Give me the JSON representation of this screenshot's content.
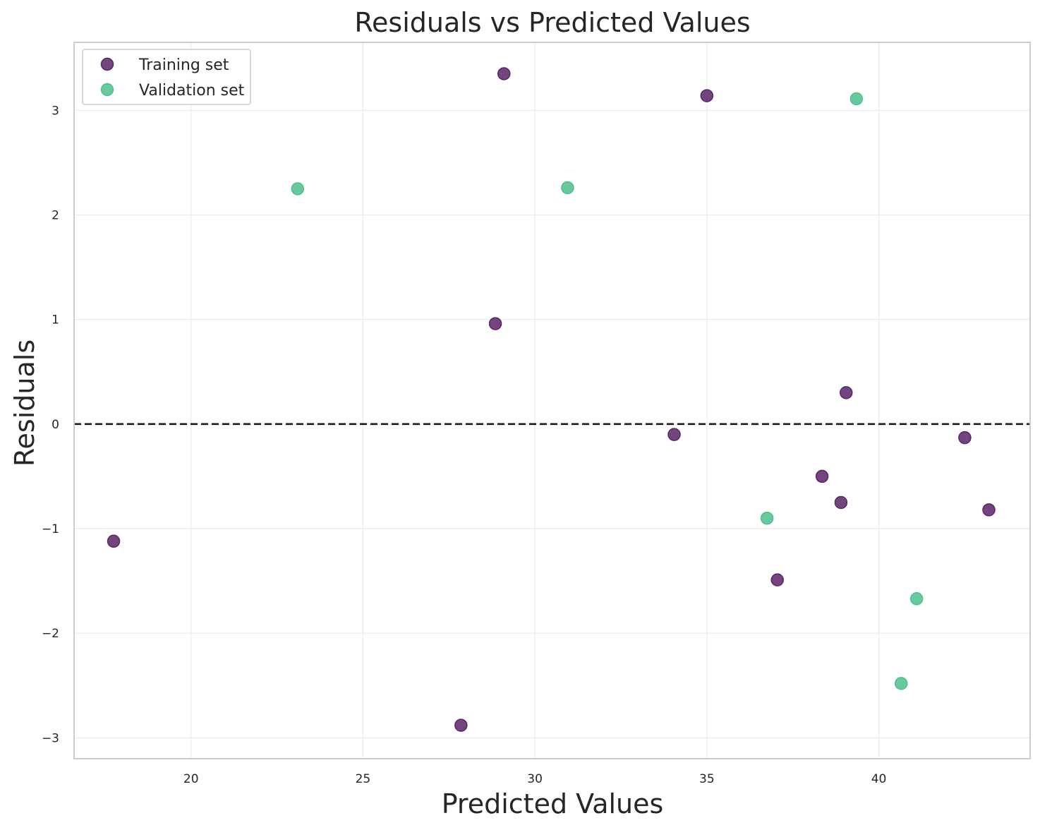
{
  "chart_data": {
    "type": "scatter",
    "title": "Residuals vs Predicted Values",
    "xlabel": "Predicted Values",
    "ylabel": "Residuals",
    "xlim": [
      16.6,
      44.4
    ],
    "ylim": [
      -3.2,
      3.65
    ],
    "xticks": [
      20,
      25,
      30,
      35,
      40
    ],
    "yticks": [
      -3,
      -2,
      -1,
      0,
      1,
      2,
      3
    ],
    "ytick_labels": [
      "−3",
      "−2",
      "−1",
      "0",
      "1",
      "2",
      "3"
    ],
    "grid": true,
    "legend_placement": "top-left",
    "reference_line": {
      "y": 0,
      "style": "dashed",
      "color": "#1a1a1a"
    },
    "series": [
      {
        "name": "Training set",
        "color": "#5b2567",
        "points": [
          {
            "x": 17.75,
            "y": -1.12
          },
          {
            "x": 27.85,
            "y": -2.88
          },
          {
            "x": 28.85,
            "y": 0.96
          },
          {
            "x": 29.1,
            "y": 3.35
          },
          {
            "x": 34.05,
            "y": -0.1
          },
          {
            "x": 35.0,
            "y": 3.14
          },
          {
            "x": 37.05,
            "y": -1.49
          },
          {
            "x": 38.35,
            "y": -0.5
          },
          {
            "x": 38.9,
            "y": -0.75
          },
          {
            "x": 39.05,
            "y": 0.3
          },
          {
            "x": 42.5,
            "y": -0.13
          },
          {
            "x": 43.2,
            "y": -0.82
          }
        ]
      },
      {
        "name": "Validation set",
        "color": "#4fc08d",
        "points": [
          {
            "x": 23.1,
            "y": 2.25
          },
          {
            "x": 30.95,
            "y": 2.26
          },
          {
            "x": 36.75,
            "y": -0.9
          },
          {
            "x": 39.35,
            "y": 3.11
          },
          {
            "x": 40.65,
            "y": -2.48
          },
          {
            "x": 41.1,
            "y": -1.67
          }
        ]
      }
    ]
  }
}
